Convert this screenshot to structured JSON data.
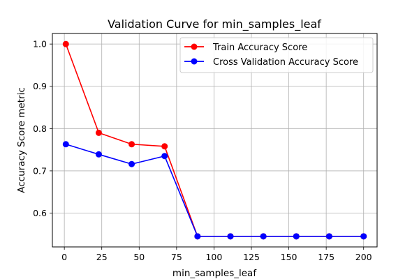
{
  "chart_data": {
    "type": "line",
    "title": "Validation Curve for min_samples_leaf",
    "xlabel": "min_samples_leaf",
    "ylabel": "Accuracy Score metric",
    "xlim": [
      -8,
      209
    ],
    "ylim": [
      0.52,
      1.025
    ],
    "xticks": [
      0,
      25,
      50,
      75,
      100,
      125,
      150,
      175,
      200
    ],
    "yticks": [
      0.6,
      0.7,
      0.8,
      0.9,
      1.0
    ],
    "ytick_labels": [
      "0.6",
      "0.7",
      "0.8",
      "0.9",
      "1.0"
    ],
    "grid": true,
    "legend_position": "upper right",
    "x": [
      1,
      23,
      45,
      67,
      89,
      111,
      133,
      155,
      177,
      200
    ],
    "series": [
      {
        "name": "Train Accuracy Score",
        "color": "#ff0000",
        "values": [
          1.0,
          0.79,
          0.763,
          0.758,
          0.545,
          0.545,
          0.545,
          0.545,
          0.545,
          0.545
        ]
      },
      {
        "name": "Cross Validation Accuracy Score",
        "color": "#0000ff",
        "values": [
          0.763,
          0.739,
          0.716,
          0.735,
          0.545,
          0.545,
          0.545,
          0.545,
          0.545,
          0.545
        ]
      }
    ]
  }
}
